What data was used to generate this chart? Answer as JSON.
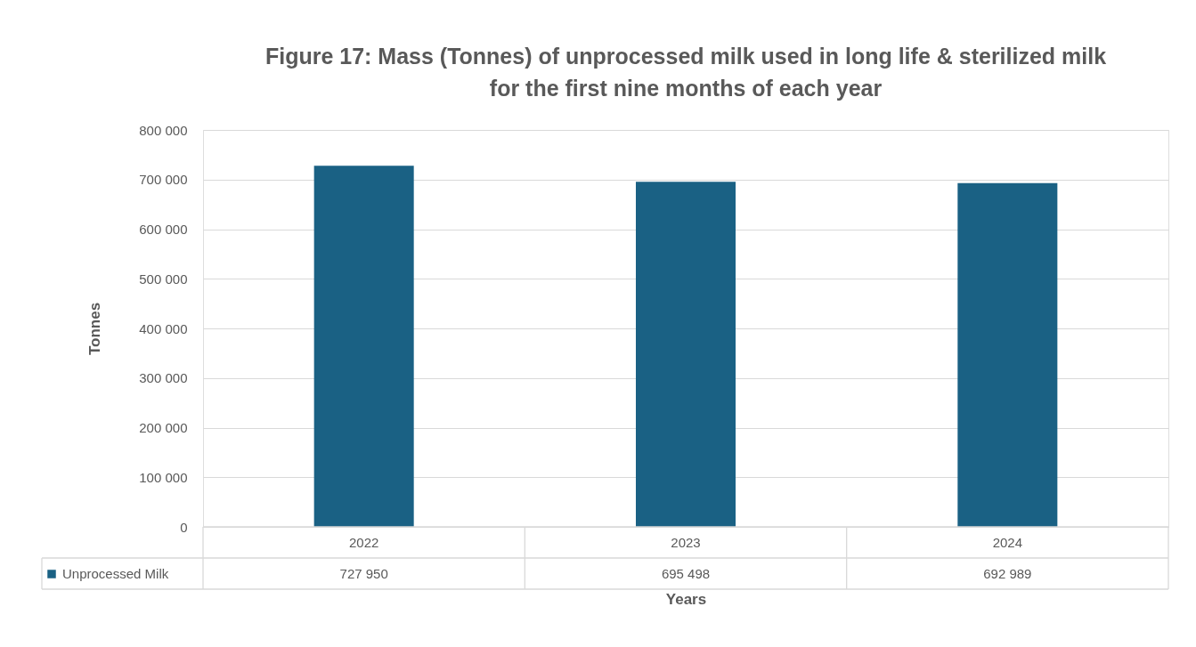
{
  "chart_data": {
    "type": "bar",
    "title": "Figure 17: Mass (Tonnes) of unprocessed milk used in long life & sterilized milk for the first nine months of each year",
    "xlabel": "Years",
    "ylabel": "Tonnes",
    "categories": [
      "2022",
      "2023",
      "2024"
    ],
    "series": [
      {
        "name": "Unprocessed Milk",
        "color": "#1a6184",
        "values": [
          727950,
          695498,
          692989
        ],
        "value_labels": [
          "727 950",
          "695 498",
          "692 989"
        ]
      }
    ],
    "ylim": [
      0,
      800000
    ],
    "yticks": [
      {
        "value": 0,
        "label": "0"
      },
      {
        "value": 100000,
        "label": "100 000"
      },
      {
        "value": 200000,
        "label": "200 000"
      },
      {
        "value": 300000,
        "label": "300 000"
      },
      {
        "value": 400000,
        "label": "400 000"
      },
      {
        "value": 500000,
        "label": "500 000"
      },
      {
        "value": 600000,
        "label": "600 000"
      },
      {
        "value": 700000,
        "label": "700 000"
      },
      {
        "value": 800000,
        "label": "800 000"
      }
    ],
    "grid": "y"
  }
}
